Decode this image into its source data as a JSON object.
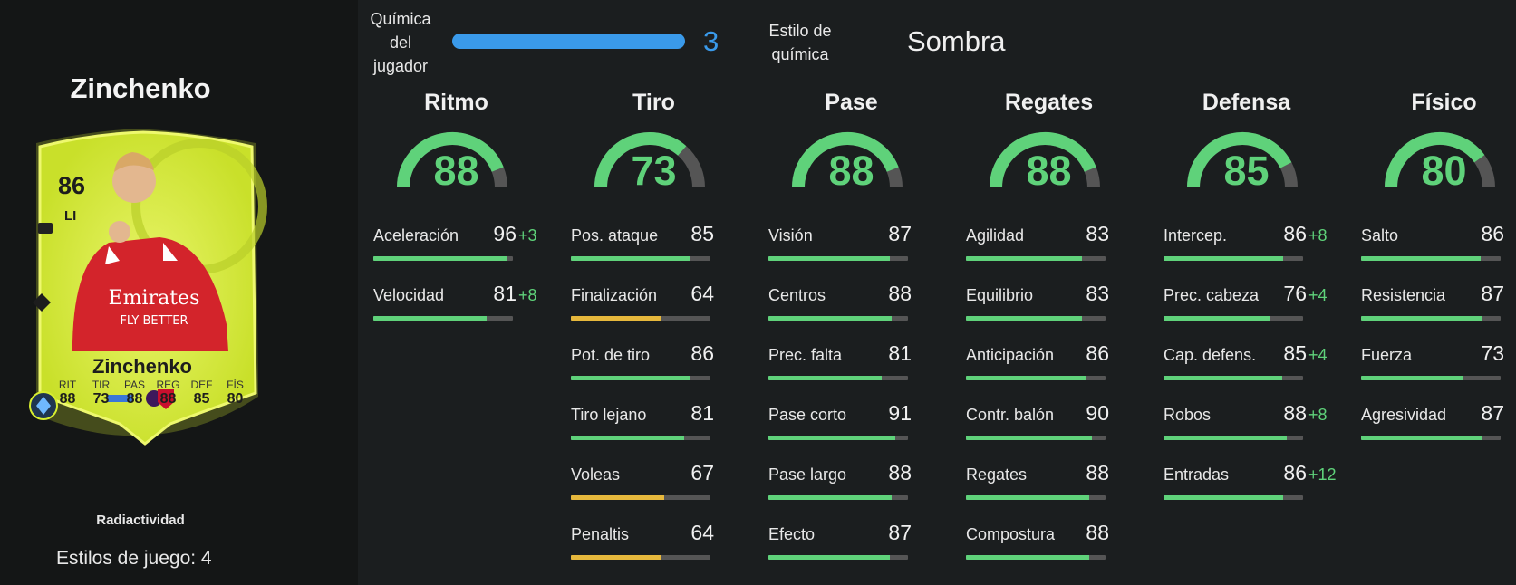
{
  "player": {
    "name": "Zinchenko",
    "card_rating": "86",
    "card_position": "LI",
    "card_name": "Zinchenko",
    "card_stats": [
      {
        "label": "RIT",
        "value": "88"
      },
      {
        "label": "TIR",
        "value": "73"
      },
      {
        "label": "PAS",
        "value": "88"
      },
      {
        "label": "REG",
        "value": "88"
      },
      {
        "label": "DEF",
        "value": "85"
      },
      {
        "label": "FÍS",
        "value": "80"
      }
    ],
    "card_sponsor": "Emirates",
    "card_sponsor_line2": "FLY BETTER",
    "rarity": "Radiactividad",
    "playstyles": "Estilos de juego: 4"
  },
  "chemistry": {
    "player_label": "Química del jugador",
    "player_value": "3",
    "player_fraction": 1.0,
    "style_label": "Estilo de química",
    "style_value": "Sombra",
    "bar_color": "#3a9aea"
  },
  "colors": {
    "high": "#5fd27a",
    "mid": "#e6b83c",
    "track": "#555555",
    "boost": "#5fd27a"
  },
  "categories": [
    {
      "name": "Ritmo",
      "value": "88",
      "gauge_fraction": 0.88,
      "stats": [
        {
          "name": "Aceleración",
          "value": "96",
          "boost": "+3",
          "tier": "high"
        },
        {
          "name": "Velocidad",
          "value": "81",
          "boost": "+8",
          "tier": "high"
        }
      ]
    },
    {
      "name": "Tiro",
      "value": "73",
      "gauge_fraction": 0.73,
      "stats": [
        {
          "name": "Pos. ataque",
          "value": "85",
          "boost": "",
          "tier": "high"
        },
        {
          "name": "Finalización",
          "value": "64",
          "boost": "",
          "tier": "mid"
        },
        {
          "name": "Pot. de tiro",
          "value": "86",
          "boost": "",
          "tier": "high"
        },
        {
          "name": "Tiro lejano",
          "value": "81",
          "boost": "",
          "tier": "high"
        },
        {
          "name": "Voleas",
          "value": "67",
          "boost": "",
          "tier": "mid"
        },
        {
          "name": "Penaltis",
          "value": "64",
          "boost": "",
          "tier": "mid"
        }
      ]
    },
    {
      "name": "Pase",
      "value": "88",
      "gauge_fraction": 0.88,
      "stats": [
        {
          "name": "Visión",
          "value": "87",
          "boost": "",
          "tier": "high"
        },
        {
          "name": "Centros",
          "value": "88",
          "boost": "",
          "tier": "high"
        },
        {
          "name": "Prec. falta",
          "value": "81",
          "boost": "",
          "tier": "high"
        },
        {
          "name": "Pase corto",
          "value": "91",
          "boost": "",
          "tier": "high"
        },
        {
          "name": "Pase largo",
          "value": "88",
          "boost": "",
          "tier": "high"
        },
        {
          "name": "Efecto",
          "value": "87",
          "boost": "",
          "tier": "high"
        }
      ]
    },
    {
      "name": "Regates",
      "value": "88",
      "gauge_fraction": 0.88,
      "stats": [
        {
          "name": "Agilidad",
          "value": "83",
          "boost": "",
          "tier": "high"
        },
        {
          "name": "Equilibrio",
          "value": "83",
          "boost": "",
          "tier": "high"
        },
        {
          "name": "Anticipación",
          "value": "86",
          "boost": "",
          "tier": "high"
        },
        {
          "name": "Contr. balón",
          "value": "90",
          "boost": "",
          "tier": "high"
        },
        {
          "name": "Regates",
          "value": "88",
          "boost": "",
          "tier": "high"
        },
        {
          "name": "Compostura",
          "value": "88",
          "boost": "",
          "tier": "high"
        }
      ]
    },
    {
      "name": "Defensa",
      "value": "85",
      "gauge_fraction": 0.85,
      "stats": [
        {
          "name": "Intercep.",
          "value": "86",
          "boost": "+8",
          "tier": "high"
        },
        {
          "name": "Prec. cabeza",
          "value": "76",
          "boost": "+4",
          "tier": "high"
        },
        {
          "name": "Cap. defens.",
          "value": "85",
          "boost": "+4",
          "tier": "high"
        },
        {
          "name": "Robos",
          "value": "88",
          "boost": "+8",
          "tier": "high"
        },
        {
          "name": "Entradas",
          "value": "86",
          "boost": "+12",
          "tier": "high"
        }
      ]
    },
    {
      "name": "Físico",
      "value": "80",
      "gauge_fraction": 0.8,
      "stats": [
        {
          "name": "Salto",
          "value": "86",
          "boost": "",
          "tier": "high"
        },
        {
          "name": "Resistencia",
          "value": "87",
          "boost": "",
          "tier": "high"
        },
        {
          "name": "Fuerza",
          "value": "73",
          "boost": "",
          "tier": "high"
        },
        {
          "name": "Agresividad",
          "value": "87",
          "boost": "",
          "tier": "high"
        }
      ]
    }
  ]
}
